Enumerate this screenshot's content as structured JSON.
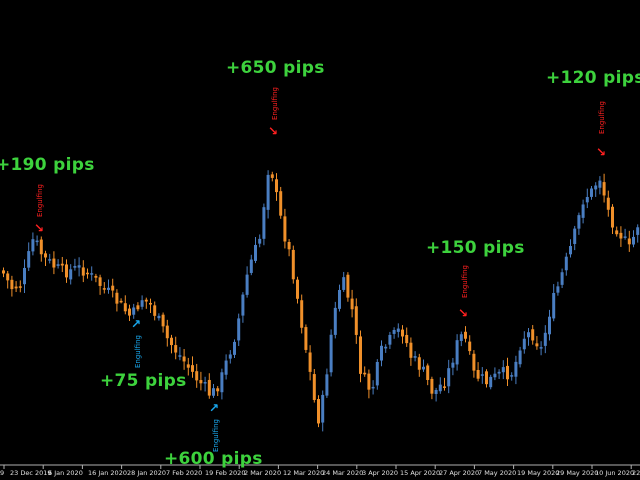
{
  "colors": {
    "background": "#000000",
    "bull": "#4a7ec2",
    "bear": "#f0902a",
    "profit_label": "#3dd23d",
    "sell_signal": "#ff2020",
    "buy_signal": "#19a9f0",
    "axis": "#b0b0b0"
  },
  "annotations": [
    "+190 pips",
    "+650 pips",
    "+120 pips",
    "+150 pips",
    "+75 pips",
    "+600 pips"
  ],
  "signals": {
    "sell_label": "Engulfing",
    "buy_label": "Engulfing",
    "sell_icon": "arrow-down-right-icon",
    "buy_icon": "arrow-up-right-icon"
  },
  "x_axis": {
    "labels": [
      "9",
      "23 Dec 2019",
      "6 Jan 2020",
      "16 Jan 2020",
      "28 Jan 2020",
      "7 Feb 2020",
      "19 Feb 2020",
      "2 Mar 2020",
      "12 Mar 2020",
      "24 Mar 2020",
      "3 Apr 2020",
      "15 Apr 2020",
      "27 Apr 2020",
      "7 May 2020",
      "19 May 2020",
      "29 May 2020",
      "10 Jun 2020",
      "22"
    ]
  }
}
